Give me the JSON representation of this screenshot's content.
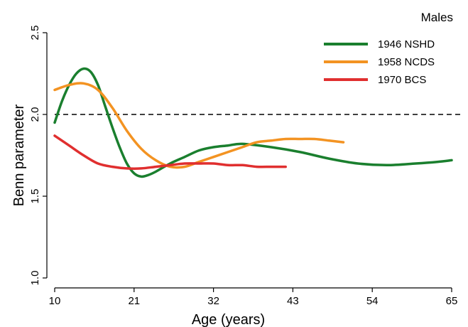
{
  "chart_data": {
    "type": "line",
    "title": "Males",
    "xlabel": "Age (years)",
    "ylabel": "Benn parameter",
    "xlim": [
      10,
      65
    ],
    "ylim": [
      1.0,
      2.5
    ],
    "xticks": [
      10,
      21,
      32,
      43,
      54,
      65
    ],
    "yticks": [
      1.0,
      1.5,
      2.0,
      2.5
    ],
    "x_tick_labels": [
      "10",
      "21",
      "32",
      "43",
      "54",
      "65"
    ],
    "y_tick_labels": [
      "1.0",
      "1.5",
      "2.0",
      "2.5"
    ],
    "reference_line": {
      "y": 2.0,
      "style": "dashed"
    },
    "legend_placement": "top-right",
    "grid": false,
    "series": [
      {
        "name": "1946 NSHD",
        "color": "#1a7f2e",
        "x": [
          10,
          11,
          12,
          13,
          14,
          15,
          16,
          17,
          18,
          19,
          20,
          21,
          22,
          23,
          24,
          26,
          28,
          30,
          32,
          34,
          36,
          40,
          44,
          48,
          52,
          56,
          60,
          63,
          65
        ],
        "y": [
          1.95,
          2.08,
          2.18,
          2.25,
          2.28,
          2.26,
          2.18,
          2.05,
          1.92,
          1.8,
          1.7,
          1.64,
          1.62,
          1.63,
          1.65,
          1.7,
          1.74,
          1.78,
          1.8,
          1.81,
          1.82,
          1.8,
          1.77,
          1.73,
          1.7,
          1.69,
          1.7,
          1.71,
          1.72
        ]
      },
      {
        "name": "1958 NCDS",
        "color": "#f39322",
        "x": [
          10,
          12,
          14,
          16,
          18,
          20,
          22,
          24,
          26,
          28,
          30,
          32,
          34,
          36,
          38,
          40,
          42,
          44,
          46,
          48,
          50
        ],
        "y": [
          2.15,
          2.18,
          2.19,
          2.15,
          2.04,
          1.9,
          1.79,
          1.72,
          1.68,
          1.68,
          1.71,
          1.74,
          1.77,
          1.8,
          1.83,
          1.84,
          1.85,
          1.85,
          1.85,
          1.84,
          1.83
        ]
      },
      {
        "name": "1970 BCS",
        "color": "#e02f2f",
        "x": [
          10,
          12,
          14,
          16,
          18,
          20,
          22,
          24,
          26,
          28,
          30,
          32,
          34,
          36,
          38,
          40,
          42
        ],
        "y": [
          1.87,
          1.81,
          1.75,
          1.7,
          1.68,
          1.67,
          1.67,
          1.68,
          1.69,
          1.7,
          1.7,
          1.7,
          1.69,
          1.69,
          1.68,
          1.68,
          1.68
        ]
      }
    ]
  }
}
